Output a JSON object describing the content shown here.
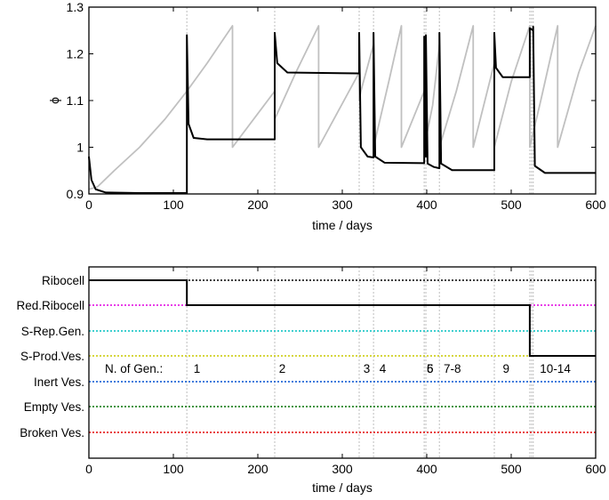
{
  "chart_data": [
    {
      "type": "line",
      "xlabel": "time / days",
      "ylabel": "ϕ",
      "xlim": [
        0,
        600
      ],
      "ylim": [
        0.9,
        1.3
      ],
      "xticks": [
        "0",
        "100",
        "200",
        "300",
        "400",
        "500",
        "600"
      ],
      "yticks": [
        "0.9",
        "1",
        "1.1",
        "1.2",
        "1.3"
      ],
      "event_times": [
        116,
        220,
        320,
        337,
        397,
        399,
        415,
        480,
        522,
        524,
        526
      ],
      "series": [
        {
          "name": "phi (black)",
          "color": "#000000",
          "x": [
            0,
            3,
            8,
            20,
            60,
            116,
            116,
            118,
            124,
            140,
            220,
            220,
            223,
            235,
            320,
            320,
            322,
            330,
            337,
            337,
            339,
            350,
            397,
            397,
            399,
            399,
            401,
            408,
            415,
            415,
            417,
            430,
            480,
            480,
            482,
            490,
            522,
            522,
            526,
            526,
            528,
            540,
            600
          ],
          "y": [
            0.98,
            0.93,
            0.91,
            0.903,
            0.902,
            0.902,
            1.24,
            1.05,
            1.02,
            1.017,
            1.017,
            1.245,
            1.18,
            1.16,
            1.158,
            1.245,
            1.0,
            0.98,
            0.978,
            1.245,
            0.98,
            0.967,
            0.966,
            1.237,
            0.98,
            1.24,
            0.965,
            0.958,
            0.955,
            1.245,
            0.965,
            0.951,
            0.951,
            1.245,
            1.17,
            1.15,
            1.15,
            1.255,
            1.25,
            1.258,
            0.96,
            0.945,
            0.945
          ]
        },
        {
          "name": "cell cycle (gray sawtooth)",
          "color": "#c0c0c0",
          "x": [
            0,
            10,
            30,
            60,
            90,
            116,
            140,
            170,
            170,
            220,
            220,
            245,
            272,
            272,
            320,
            320,
            322,
            337,
            337,
            355,
            370,
            370,
            397,
            397,
            407,
            415,
            415,
            435,
            455,
            455,
            480,
            480,
            500,
            522,
            522,
            535,
            555,
            555,
            580,
            600
          ],
          "y": [
            0.91,
            0.915,
            0.95,
            1.0,
            1.06,
            1.12,
            1.18,
            1.26,
            1.0,
            1.12,
            1.06,
            1.16,
            1.26,
            1.0,
            1.16,
            1.1,
            1.12,
            1.22,
            1.0,
            1.14,
            1.26,
            1.0,
            1.12,
            1.0,
            1.09,
            1.22,
            1.0,
            1.12,
            1.26,
            1.0,
            1.18,
            1.0,
            1.14,
            1.26,
            1.0,
            1.1,
            1.26,
            1.0,
            1.16,
            1.26
          ]
        }
      ]
    },
    {
      "type": "step",
      "xlabel": "time / days",
      "xlim": [
        0,
        600
      ],
      "xticks": [
        "0",
        "100",
        "200",
        "300",
        "400",
        "500",
        "600"
      ],
      "categories": [
        "Ribocell",
        "Red.Ribocell",
        "S-Rep.Gen.",
        "S-Prod.Ves.",
        "Inert Ves.",
        "Empty Ves.",
        "Broken Ves."
      ],
      "category_colors": [
        "#000000",
        "#e000e0",
        "#00c0c0",
        "#c8c800",
        "#0050d0",
        "#007000",
        "#e00000"
      ],
      "state_path": {
        "x": [
          0,
          116,
          116,
          522,
          522,
          600
        ],
        "state": [
          "Ribocell",
          "Ribocell",
          "Red.Ribocell",
          "Red.Ribocell",
          "S-Prod.Ves.",
          "S-Prod.Ves."
        ]
      },
      "event_times": [
        116,
        220,
        320,
        337,
        397,
        399,
        415,
        480,
        522,
        524,
        526
      ],
      "generations_label": "N. of Gen.:",
      "generations": [
        {
          "label": "1",
          "x": 124
        },
        {
          "label": "2",
          "x": 225
        },
        {
          "label": "3",
          "x": 325
        },
        {
          "label": "4",
          "x": 344
        },
        {
          "label": "6",
          "x": 400
        },
        {
          "label": "5",
          "x": 400
        },
        {
          "label": "7-8",
          "x": 420
        },
        {
          "label": "9",
          "x": 490
        },
        {
          "label": "10-14",
          "x": 534
        }
      ]
    }
  ]
}
